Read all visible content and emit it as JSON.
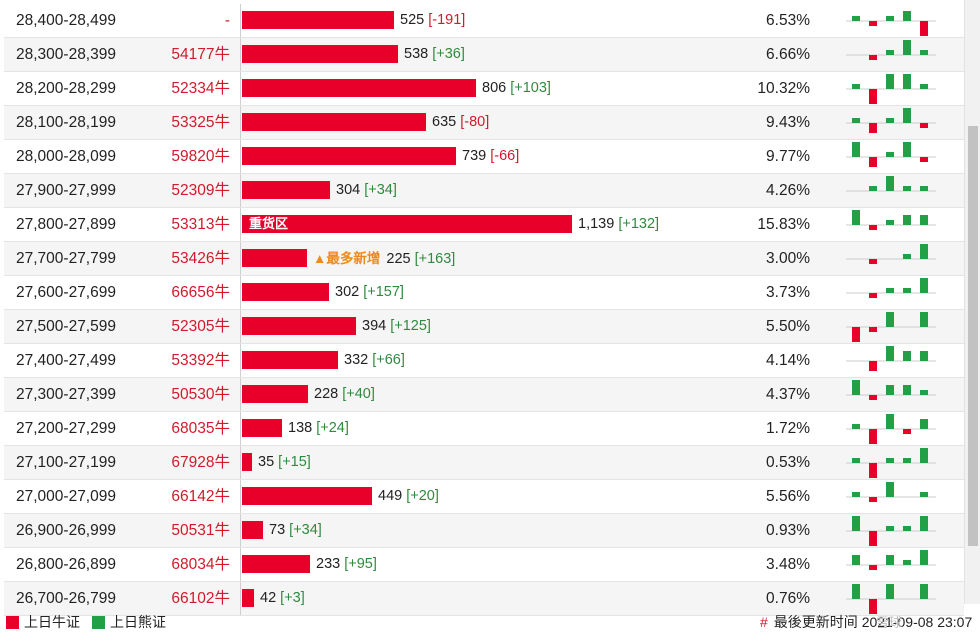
{
  "colors": {
    "bull": "#e8002a",
    "bear": "#22a046",
    "text_neg": "#d11a2a",
    "text_pos": "#2e8b3e",
    "newest": "#f08a1c"
  },
  "rows": [
    {
      "range": "28,400-28,499",
      "bull": "-",
      "count": "525",
      "count_val": 525,
      "delta": "[-191]",
      "pct": "6.53%",
      "mini": [
        1,
        -1,
        1,
        2,
        -3
      ]
    },
    {
      "range": "28,300-28,399",
      "bull": "54177牛",
      "count": "538",
      "count_val": 538,
      "delta": "[+36]",
      "pct": "6.66%",
      "mini": [
        0,
        -1,
        1,
        3,
        1
      ]
    },
    {
      "range": "28,200-28,299",
      "bull": "52334牛",
      "count": "806",
      "count_val": 806,
      "delta": "[+103]",
      "pct": "10.32%",
      "mini": [
        1,
        -3,
        3,
        3,
        1
      ]
    },
    {
      "range": "28,100-28,199",
      "bull": "53325牛",
      "count": "635",
      "count_val": 635,
      "delta": "[-80]",
      "pct": "9.43%",
      "mini": [
        1,
        -2,
        1,
        3,
        -1
      ]
    },
    {
      "range": "28,000-28,099",
      "bull": "59820牛",
      "count": "739",
      "count_val": 739,
      "delta": "[-66]",
      "pct": "9.77%",
      "mini": [
        3,
        -2,
        1,
        3,
        -1
      ]
    },
    {
      "range": "27,900-27,999",
      "bull": "52309牛",
      "count": "304",
      "count_val": 304,
      "delta": "[+34]",
      "pct": "4.26%",
      "mini": [
        0,
        1,
        3,
        1,
        1
      ]
    },
    {
      "range": "27,800-27,899",
      "bull": "53313牛",
      "count": "1,139",
      "count_val": 1139,
      "delta": "[+132]",
      "pct": "15.83%",
      "mini": [
        3,
        -1,
        1,
        2,
        2
      ],
      "tag": "重货区"
    },
    {
      "range": "27,700-27,799",
      "bull": "53426牛",
      "count": "225",
      "count_val": 225,
      "delta": "[+163]",
      "pct": "3.00%",
      "mini": [
        0,
        -1,
        0,
        1,
        3
      ],
      "newest": "▲最多新增"
    },
    {
      "range": "27,600-27,699",
      "bull": "66656牛",
      "count": "302",
      "count_val": 302,
      "delta": "[+157]",
      "pct": "3.73%",
      "mini": [
        0,
        -1,
        1,
        1,
        3
      ]
    },
    {
      "range": "27,500-27,599",
      "bull": "52305牛",
      "count": "394",
      "count_val": 394,
      "delta": "[+125]",
      "pct": "5.50%",
      "mini": [
        -3,
        -1,
        3,
        0,
        3
      ]
    },
    {
      "range": "27,400-27,499",
      "bull": "53392牛",
      "count": "332",
      "count_val": 332,
      "delta": "[+66]",
      "pct": "4.14%",
      "mini": [
        0,
        -2,
        3,
        2,
        2
      ]
    },
    {
      "range": "27,300-27,399",
      "bull": "50530牛",
      "count": "228",
      "count_val": 228,
      "delta": "[+40]",
      "pct": "4.37%",
      "mini": [
        3,
        -1,
        2,
        2,
        1
      ]
    },
    {
      "range": "27,200-27,299",
      "bull": "68035牛",
      "count": "138",
      "count_val": 138,
      "delta": "[+24]",
      "pct": "1.72%",
      "mini": [
        1,
        -3,
        3,
        -1,
        2
      ]
    },
    {
      "range": "27,100-27,199",
      "bull": "67928牛",
      "count": "35",
      "count_val": 35,
      "delta": "[+15]",
      "pct": "0.53%",
      "mini": [
        1,
        -3,
        1,
        1,
        3
      ]
    },
    {
      "range": "27,000-27,099",
      "bull": "66142牛",
      "count": "449",
      "count_val": 449,
      "delta": "[+20]",
      "pct": "5.56%",
      "mini": [
        1,
        -1,
        3,
        0,
        1
      ]
    },
    {
      "range": "26,900-26,999",
      "bull": "50531牛",
      "count": "73",
      "count_val": 73,
      "delta": "[+34]",
      "pct": "0.93%",
      "mini": [
        3,
        -3,
        1,
        1,
        3
      ]
    },
    {
      "range": "26,800-26,899",
      "bull": "68034牛",
      "count": "233",
      "count_val": 233,
      "delta": "[+95]",
      "pct": "3.48%",
      "mini": [
        2,
        -1,
        2,
        1,
        3
      ]
    },
    {
      "range": "26,700-26,799",
      "bull": "66102牛",
      "count": "42",
      "count_val": 42,
      "delta": "[+3]",
      "pct": "0.76%",
      "mini": [
        3,
        -3,
        3,
        0,
        3
      ]
    }
  ],
  "footer": {
    "legend_bull": "上日牛证",
    "legend_bear": "上日熊证",
    "updated_hash": "#",
    "updated_label": "最後更新时间",
    "updated_time": "2021-09-08 23:07"
  },
  "watermark": "雪球"
}
